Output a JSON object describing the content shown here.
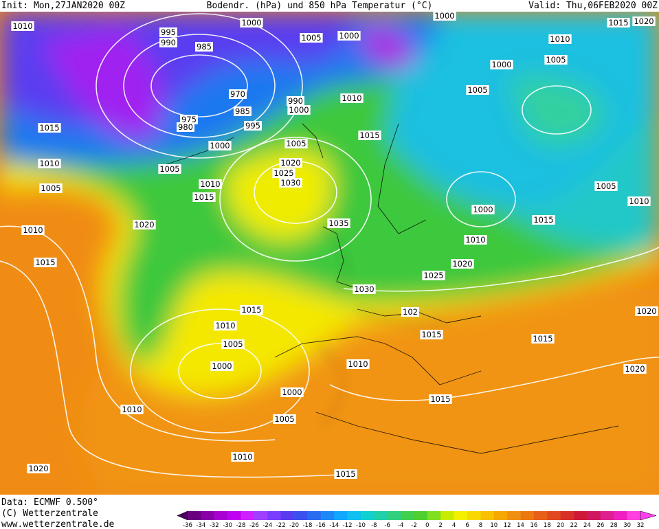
{
  "header": {
    "init": "Init: Mon,27JAN2020 00Z",
    "title": "Bodendr. (hPa) und 850 hPa Temperatur (°C)",
    "valid": "Valid: Thu,06FEB2020 00Z"
  },
  "footer": {
    "data": "Data: ECMWF  0.500°",
    "copyright": "(C) Wetterzentrale",
    "url": "www.wetterzentrale.de"
  },
  "colorbar": {
    "labels": [
      "-36",
      "-34",
      "-32",
      "-30",
      "-28",
      "-26",
      "-24",
      "-22",
      "-20",
      "-18",
      "-16",
      "-14",
      "-12",
      "-10",
      "-8",
      "-6",
      "-4",
      "-2",
      "0",
      "2",
      "4",
      "6",
      "8",
      "10",
      "12",
      "14",
      "16",
      "18",
      "20",
      "22",
      "24",
      "26",
      "28",
      "30",
      "32"
    ]
  },
  "isobar_labels": [
    "1010",
    "995",
    "990",
    "985",
    "1000",
    "1005",
    "1000",
    "1000",
    "1015",
    "1020",
    "1010",
    "1005",
    "1000",
    "1005",
    "1010",
    "970",
    "985",
    "975",
    "980",
    "995",
    "990",
    "1000",
    "1015",
    "1000",
    "1005",
    "1015",
    "1010",
    "1005",
    "1020",
    "1025",
    "1030",
    "1010",
    "1005",
    "1015",
    "1010",
    "1020",
    "1035",
    "1000",
    "1005",
    "1010",
    "1015",
    "1010",
    "1015",
    "1020",
    "1025",
    "1030",
    "1015",
    "1010",
    "102",
    "1020",
    "1005",
    "1015",
    "1015",
    "1000",
    "1010",
    "1020",
    "1000",
    "1015",
    "1010",
    "1005",
    "1010",
    "1020",
    "1015"
  ]
}
